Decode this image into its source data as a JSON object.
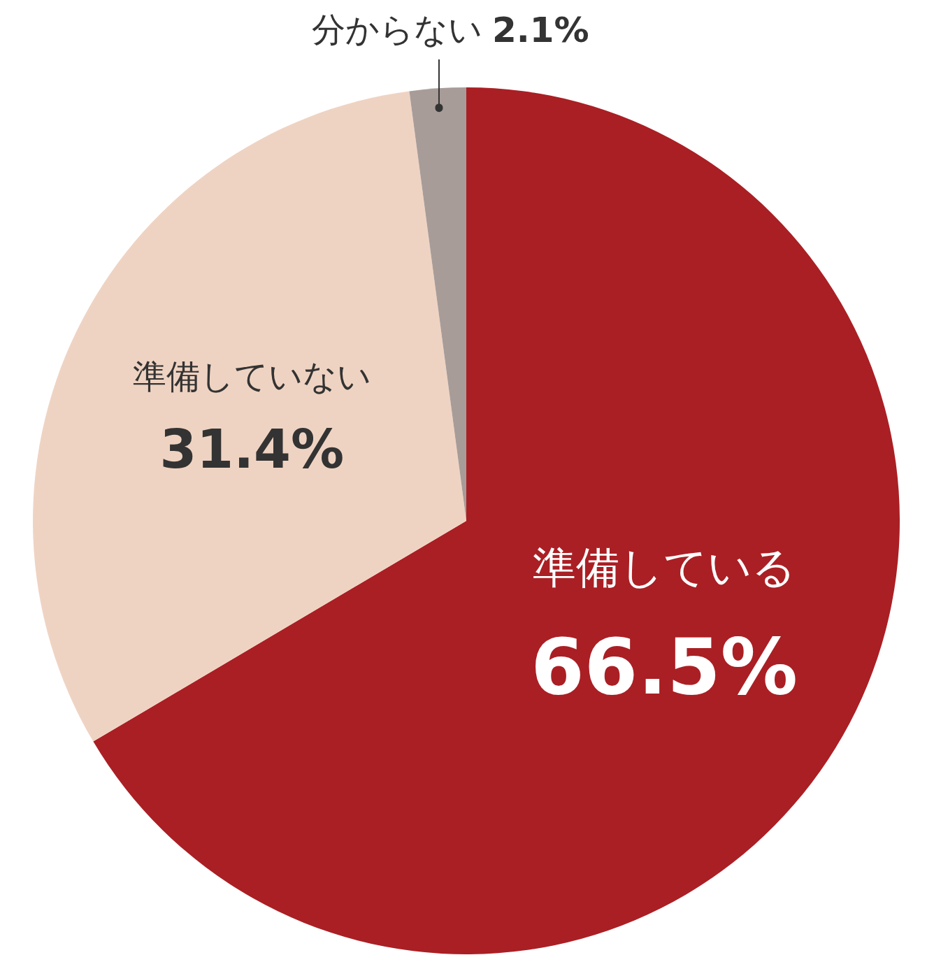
{
  "chart_data": {
    "type": "pie",
    "categories": [
      "準備している",
      "準備していない",
      "分からない"
    ],
    "values": [
      66.5,
      31.4,
      2.1
    ],
    "colors": [
      "#aa1f24",
      "#efd3c2",
      "#a89c98"
    ],
    "value_labels": [
      "66.5%",
      "31.4%",
      "2.1%"
    ]
  }
}
